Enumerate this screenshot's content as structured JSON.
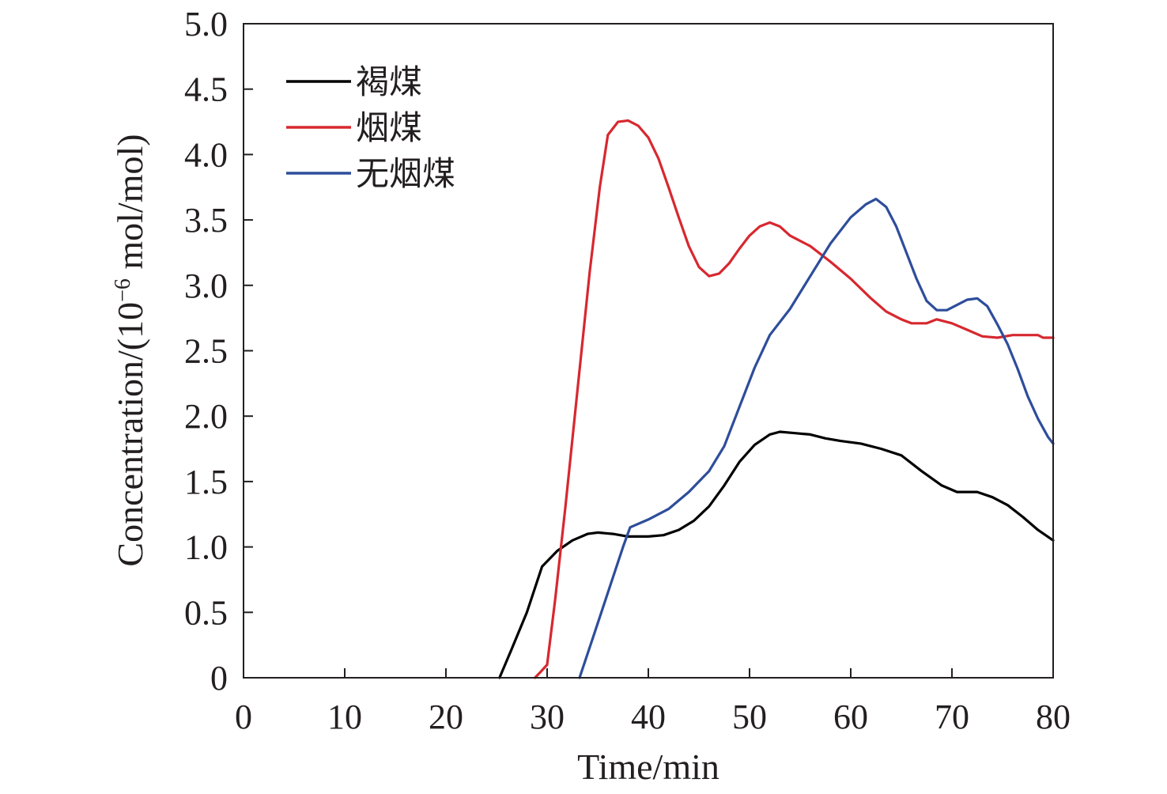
{
  "chart_data": {
    "type": "line",
    "xlabel": "Time/min",
    "ylabel": "Concentration/(10",
    "ylabel_sup": "−6",
    "ylabel_unit": " mol/mol)",
    "xlim": [
      0,
      80
    ],
    "ylim": [
      0,
      5.0
    ],
    "x_ticks": [
      0,
      10,
      20,
      30,
      40,
      50,
      60,
      70,
      80
    ],
    "x_tick_labels": [
      "0",
      "10",
      "20",
      "30",
      "40",
      "50",
      "60",
      "70",
      "80"
    ],
    "y_ticks": [
      0,
      0.5,
      1.0,
      1.5,
      2.0,
      2.5,
      3.0,
      3.5,
      4.0,
      4.5,
      5.0
    ],
    "y_tick_labels": [
      "0",
      "0.5",
      "1.0",
      "1.5",
      "2.0",
      "2.5",
      "3.0",
      "3.5",
      "4.0",
      "4.5",
      "5.0"
    ],
    "grid": false,
    "legend_position": "top-left",
    "series": [
      {
        "name": "褐煤",
        "color": "#000000",
        "points": [
          [
            25.3,
            0
          ],
          [
            26.5,
            0.22
          ],
          [
            28,
            0.5
          ],
          [
            29.5,
            0.85
          ],
          [
            31,
            0.97
          ],
          [
            32.5,
            1.05
          ],
          [
            34,
            1.1
          ],
          [
            35,
            1.11
          ],
          [
            36.5,
            1.1
          ],
          [
            38,
            1.08
          ],
          [
            40,
            1.08
          ],
          [
            41.5,
            1.09
          ],
          [
            43,
            1.13
          ],
          [
            44.5,
            1.2
          ],
          [
            46,
            1.31
          ],
          [
            47.5,
            1.47
          ],
          [
            49,
            1.65
          ],
          [
            50.5,
            1.78
          ],
          [
            52,
            1.86
          ],
          [
            53,
            1.88
          ],
          [
            54.5,
            1.87
          ],
          [
            56,
            1.86
          ],
          [
            57.5,
            1.83
          ],
          [
            59,
            1.81
          ],
          [
            61,
            1.79
          ],
          [
            63,
            1.75
          ],
          [
            65,
            1.7
          ],
          [
            67,
            1.58
          ],
          [
            69,
            1.47
          ],
          [
            70.5,
            1.42
          ],
          [
            72.5,
            1.42
          ],
          [
            74,
            1.38
          ],
          [
            75.5,
            1.32
          ],
          [
            77,
            1.23
          ],
          [
            78.5,
            1.13
          ],
          [
            80,
            1.05
          ]
        ]
      },
      {
        "name": "烟煤",
        "color": "#d7282f",
        "points": [
          [
            28.8,
            0
          ],
          [
            29.3,
            0.04
          ],
          [
            30,
            0.1
          ],
          [
            30.8,
            0.6
          ],
          [
            31.8,
            1.3
          ],
          [
            33,
            2.2
          ],
          [
            34.2,
            3.1
          ],
          [
            35.2,
            3.75
          ],
          [
            36,
            4.15
          ],
          [
            37,
            4.25
          ],
          [
            38,
            4.26
          ],
          [
            39,
            4.22
          ],
          [
            40,
            4.13
          ],
          [
            41,
            3.97
          ],
          [
            42,
            3.75
          ],
          [
            43,
            3.52
          ],
          [
            44,
            3.3
          ],
          [
            45,
            3.14
          ],
          [
            46,
            3.07
          ],
          [
            47,
            3.09
          ],
          [
            48,
            3.17
          ],
          [
            49,
            3.28
          ],
          [
            50,
            3.38
          ],
          [
            51,
            3.45
          ],
          [
            52,
            3.48
          ],
          [
            53,
            3.45
          ],
          [
            54,
            3.38
          ],
          [
            56,
            3.3
          ],
          [
            58,
            3.18
          ],
          [
            60,
            3.05
          ],
          [
            62,
            2.9
          ],
          [
            63.5,
            2.8
          ],
          [
            65,
            2.74
          ],
          [
            66,
            2.71
          ],
          [
            67.5,
            2.71
          ],
          [
            68.5,
            2.74
          ],
          [
            70,
            2.71
          ],
          [
            71.5,
            2.66
          ],
          [
            73,
            2.61
          ],
          [
            74.5,
            2.6
          ],
          [
            76,
            2.62
          ],
          [
            77.5,
            2.62
          ],
          [
            78.5,
            2.62
          ],
          [
            79,
            2.6
          ],
          [
            80,
            2.6
          ]
        ]
      },
      {
        "name": "无烟煤",
        "color": "#2e4d9b",
        "points": [
          [
            33.2,
            0
          ],
          [
            34.5,
            0.3
          ],
          [
            36,
            0.65
          ],
          [
            37.5,
            1.0
          ],
          [
            38.2,
            1.15
          ],
          [
            40,
            1.21
          ],
          [
            42,
            1.29
          ],
          [
            44,
            1.42
          ],
          [
            46,
            1.58
          ],
          [
            47.5,
            1.77
          ],
          [
            49,
            2.07
          ],
          [
            50.5,
            2.37
          ],
          [
            52,
            2.62
          ],
          [
            54,
            2.82
          ],
          [
            56,
            3.07
          ],
          [
            58,
            3.32
          ],
          [
            60,
            3.52
          ],
          [
            61.5,
            3.62
          ],
          [
            62.5,
            3.66
          ],
          [
            63.5,
            3.6
          ],
          [
            64.5,
            3.45
          ],
          [
            65.5,
            3.25
          ],
          [
            66.5,
            3.05
          ],
          [
            67.5,
            2.88
          ],
          [
            68.5,
            2.81
          ],
          [
            69.5,
            2.81
          ],
          [
            70.5,
            2.85
          ],
          [
            71.5,
            2.89
          ],
          [
            72.5,
            2.9
          ],
          [
            73.5,
            2.84
          ],
          [
            74.5,
            2.7
          ],
          [
            75.5,
            2.55
          ],
          [
            76.5,
            2.36
          ],
          [
            77.5,
            2.15
          ],
          [
            78.5,
            1.98
          ],
          [
            79.5,
            1.84
          ],
          [
            80,
            1.79
          ]
        ]
      }
    ]
  }
}
